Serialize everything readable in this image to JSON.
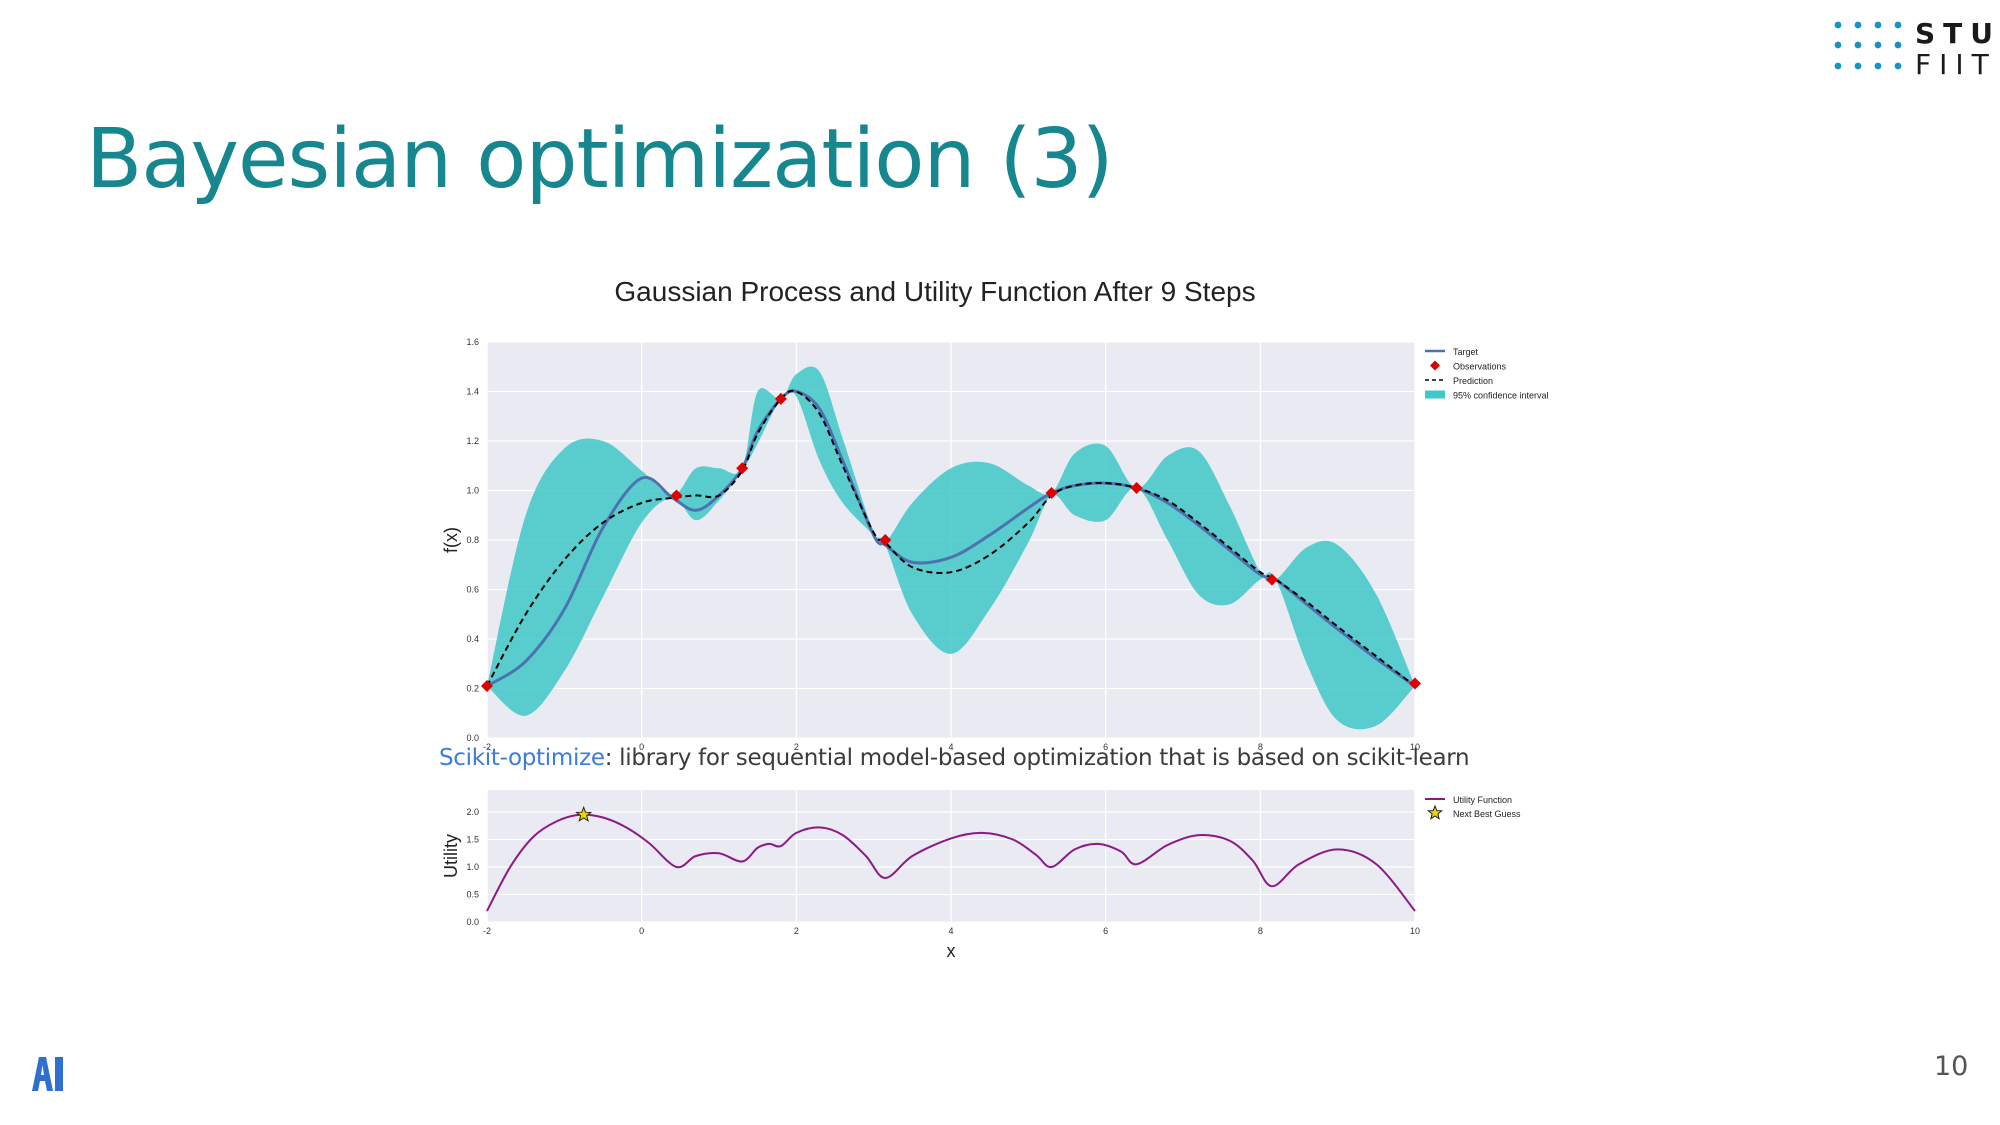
{
  "slide": {
    "title": "Bayesian optimization (3)",
    "page_number": "10",
    "logo": {
      "line1": "STU",
      "line2": "FIIT"
    },
    "caption_link": "Scikit-optimize",
    "caption_rest": ": library for sequential model-based optimization that is based on scikit-learn",
    "colors": {
      "title": "#16868f",
      "link": "#3b7dd8",
      "logo_dots": "#1793c0",
      "ai_logo": "#2f6fd0"
    }
  },
  "chart_data": [
    {
      "type": "line",
      "title": "Gaussian Process and Utility Function After 9 Steps",
      "xlabel": "",
      "ylabel": "f(x)",
      "xlim": [
        -2,
        10
      ],
      "ylim": [
        0.0,
        1.6
      ],
      "xticks": [
        "-2",
        "0",
        "2",
        "4",
        "6",
        "8",
        "10"
      ],
      "yticks": [
        "0.0",
        "0.2",
        "0.4",
        "0.6",
        "0.8",
        "1.0",
        "1.2",
        "1.4",
        "1.6"
      ],
      "grid": true,
      "legend_position": "outside-right",
      "x": [
        -2,
        -1.5,
        -1,
        -0.5,
        0,
        0.4,
        0.7,
        1,
        1.3,
        1.5,
        1.8,
        2,
        2.3,
        2.6,
        3,
        3.15,
        3.5,
        4,
        4.5,
        5,
        5.3,
        5.6,
        6,
        6.4,
        6.8,
        7.2,
        7.6,
        8,
        8.2,
        8.6,
        9,
        9.5,
        10
      ],
      "series": [
        {
          "name": "Target",
          "color": "#4c72b0",
          "values": [
            0.21,
            0.31,
            0.52,
            0.85,
            1.05,
            0.97,
            0.92,
            0.98,
            1.09,
            1.24,
            1.37,
            1.4,
            1.33,
            1.12,
            0.82,
            0.78,
            0.71,
            0.73,
            0.82,
            0.93,
            0.99,
            1.02,
            1.03,
            1.01,
            0.95,
            0.86,
            0.76,
            0.66,
            0.64,
            0.54,
            0.44,
            0.32,
            0.21
          ]
        },
        {
          "name": "Prediction",
          "color": "#000000",
          "values": [
            0.21,
            0.5,
            0.72,
            0.87,
            0.95,
            0.97,
            0.98,
            0.98,
            1.08,
            1.23,
            1.37,
            1.4,
            1.31,
            1.1,
            0.83,
            0.79,
            0.69,
            0.67,
            0.74,
            0.87,
            0.98,
            1.02,
            1.03,
            1.01,
            0.96,
            0.87,
            0.77,
            0.67,
            0.64,
            0.55,
            0.45,
            0.33,
            0.21
          ]
        }
      ],
      "confidence_interval": {
        "name": "95% confidence interval",
        "color": "#3fc8c8",
        "upper": [
          0.21,
          0.9,
          1.17,
          1.2,
          1.08,
          0.98,
          1.09,
          1.09,
          1.09,
          1.4,
          1.37,
          1.47,
          1.48,
          1.21,
          0.83,
          0.79,
          0.95,
          1.09,
          1.11,
          1.02,
          0.99,
          1.15,
          1.18,
          1.01,
          1.14,
          1.16,
          0.94,
          0.67,
          0.64,
          0.77,
          0.78,
          0.58,
          0.21
        ],
        "lower": [
          0.21,
          0.09,
          0.27,
          0.57,
          0.87,
          0.97,
          0.88,
          0.96,
          1.08,
          1.19,
          1.37,
          1.38,
          1.12,
          0.95,
          0.82,
          0.78,
          0.5,
          0.34,
          0.52,
          0.79,
          0.98,
          0.9,
          0.88,
          1.01,
          0.8,
          0.58,
          0.54,
          0.64,
          0.64,
          0.3,
          0.07,
          0.05,
          0.21
        ]
      },
      "observations": {
        "name": "Observations",
        "color": "#e00000",
        "x": [
          -2,
          0.45,
          1.3,
          1.8,
          3.15,
          5.3,
          6.4,
          8.15,
          10
        ],
        "y": [
          0.21,
          0.98,
          1.09,
          1.37,
          0.8,
          0.99,
          1.01,
          0.64,
          0.22
        ]
      },
      "legend": [
        "Target",
        "Observations",
        "Prediction",
        "95% confidence interval"
      ]
    },
    {
      "type": "line",
      "xlabel": "x",
      "ylabel": "Utility",
      "xlim": [
        -2,
        10
      ],
      "ylim": [
        0.0,
        2.4
      ],
      "xticks": [
        "-2",
        "0",
        "2",
        "4",
        "6",
        "8",
        "10"
      ],
      "yticks": [
        "0.0",
        "0.5",
        "1.0",
        "1.5",
        "2.0"
      ],
      "grid": true,
      "legend_position": "outside-right",
      "series": [
        {
          "name": "Utility Function",
          "color": "#8b1a89",
          "x": [
            -2,
            -1.7,
            -1.4,
            -1.1,
            -0.8,
            -0.5,
            -0.2,
            0.1,
            0.45,
            0.7,
            1.0,
            1.3,
            1.5,
            1.65,
            1.8,
            2.0,
            2.3,
            2.6,
            2.9,
            3.15,
            3.5,
            4.0,
            4.4,
            4.8,
            5.1,
            5.3,
            5.6,
            5.9,
            6.2,
            6.4,
            6.8,
            7.2,
            7.6,
            7.9,
            8.15,
            8.5,
            9.0,
            9.5,
            10.0
          ],
          "values": [
            0.2,
            1.0,
            1.55,
            1.83,
            1.95,
            1.9,
            1.72,
            1.43,
            1.0,
            1.2,
            1.25,
            1.1,
            1.35,
            1.42,
            1.38,
            1.62,
            1.72,
            1.58,
            1.2,
            0.8,
            1.2,
            1.52,
            1.62,
            1.5,
            1.22,
            1.0,
            1.32,
            1.42,
            1.28,
            1.05,
            1.4,
            1.58,
            1.48,
            1.12,
            0.65,
            1.05,
            1.32,
            1.05,
            0.2
          ]
        }
      ],
      "next_best_guess": {
        "name": "Next Best Guess",
        "x": -0.75,
        "y": 1.95,
        "color": "#f0d400"
      },
      "legend": [
        "Utility Function",
        "Next Best Guess"
      ]
    }
  ]
}
